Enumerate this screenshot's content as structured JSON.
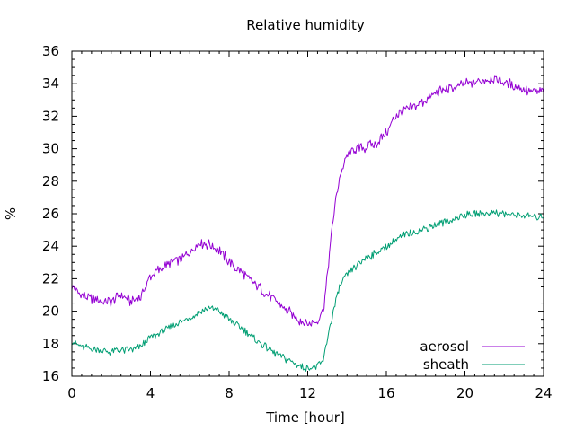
{
  "chart_data": {
    "type": "line",
    "title": "Relative humidity",
    "xlabel": "Time [hour]",
    "ylabel": "%",
    "xlim": [
      0,
      24
    ],
    "ylim": [
      16,
      36
    ],
    "xticks": [
      0,
      4,
      8,
      12,
      16,
      20,
      24
    ],
    "yticks": [
      16,
      18,
      20,
      22,
      24,
      26,
      28,
      30,
      32,
      34,
      36
    ],
    "grid": false,
    "legend_position": "bottom-right",
    "series": [
      {
        "name": "aerosol",
        "color": "#9400d3",
        "x": [
          0,
          0.5,
          1,
          1.5,
          2,
          2.5,
          3,
          3.5,
          4,
          4.5,
          5,
          5.5,
          6,
          6.5,
          7,
          7.5,
          8,
          8.5,
          9,
          9.5,
          10,
          10.5,
          11,
          11.5,
          12,
          12.5,
          12.8,
          13,
          13.3,
          13.6,
          14,
          14.5,
          15,
          15.5,
          16,
          16.5,
          17,
          17.5,
          18,
          18.5,
          19,
          19.5,
          20,
          20.5,
          21,
          21.5,
          22,
          22.5,
          23,
          23.5,
          24
        ],
        "y": [
          21.6,
          21.0,
          20.8,
          20.6,
          20.6,
          21.0,
          20.6,
          20.9,
          22.2,
          22.6,
          23.0,
          23.2,
          23.6,
          24.2,
          24.1,
          23.8,
          23.0,
          22.5,
          22.0,
          21.5,
          21.0,
          20.5,
          20.0,
          19.5,
          19.2,
          19.4,
          20.2,
          22.2,
          25.8,
          28.2,
          29.6,
          30.0,
          30.1,
          30.3,
          31.0,
          32.1,
          32.4,
          32.6,
          33.0,
          33.4,
          33.6,
          33.8,
          34.0,
          34.1,
          34.2,
          34.3,
          34.1,
          33.9,
          33.6,
          33.5,
          33.6
        ]
      },
      {
        "name": "sheath",
        "color": "#009e73",
        "x": [
          0,
          0.5,
          1,
          1.5,
          2,
          2.5,
          3,
          3.5,
          4,
          4.5,
          5,
          5.5,
          6,
          6.5,
          7,
          7.5,
          8,
          8.5,
          9,
          9.5,
          10,
          10.5,
          11,
          11.5,
          12,
          12.5,
          12.8,
          13,
          13.3,
          13.6,
          14,
          14.5,
          15,
          15.5,
          16,
          16.5,
          17,
          17.5,
          18,
          18.5,
          19,
          19.5,
          20,
          20.5,
          21,
          21.5,
          22,
          22.5,
          23,
          23.5,
          24
        ],
        "y": [
          18.2,
          17.8,
          17.7,
          17.6,
          17.5,
          17.6,
          17.6,
          17.8,
          18.4,
          18.7,
          19.0,
          19.3,
          19.6,
          19.9,
          20.2,
          20.0,
          19.5,
          19.1,
          18.6,
          18.1,
          17.7,
          17.3,
          17.0,
          16.7,
          16.5,
          16.6,
          17.0,
          18.3,
          20.0,
          21.4,
          22.3,
          22.8,
          23.3,
          23.6,
          24.0,
          24.4,
          24.7,
          24.9,
          25.1,
          25.3,
          25.5,
          25.7,
          25.9,
          26.0,
          26.0,
          26.1,
          26.0,
          25.9,
          25.9,
          25.8,
          25.8
        ]
      }
    ]
  }
}
